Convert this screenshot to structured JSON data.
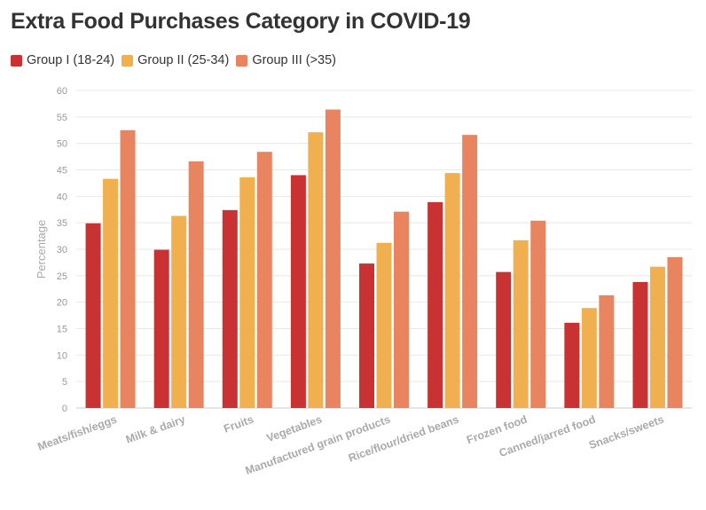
{
  "chart_data": {
    "type": "bar",
    "title": "Extra Food Purchases Category in COVID-19",
    "xlabel": "",
    "ylabel": "Percentage",
    "ylim": [
      0,
      60
    ],
    "yticks": [
      0,
      5,
      10,
      15,
      20,
      25,
      30,
      35,
      40,
      45,
      50,
      55,
      60
    ],
    "grid": true,
    "legend_position": "top-left",
    "categories": [
      "Meats/fish/eggs",
      "Milk & dairy",
      "Fruits",
      "Vegetables",
      "Manufactured grain products",
      "Rice/flour/dried beans",
      "Frozen food",
      "Canned/jarred food",
      "Snacks/sweets"
    ],
    "series": [
      {
        "name": "Group I (18-24)",
        "color": "#c83232",
        "values": [
          34.9,
          29.9,
          37.4,
          44.0,
          27.3,
          38.9,
          25.7,
          16.1,
          23.8
        ]
      },
      {
        "name": "Group II (25-34)",
        "color": "#f0b050",
        "values": [
          43.3,
          36.3,
          43.6,
          52.1,
          31.2,
          44.4,
          31.7,
          18.9,
          26.7
        ]
      },
      {
        "name": "Group III (>35)",
        "color": "#e88560",
        "values": [
          52.5,
          46.6,
          48.4,
          56.4,
          37.1,
          51.6,
          35.4,
          21.3,
          28.5
        ]
      }
    ]
  }
}
